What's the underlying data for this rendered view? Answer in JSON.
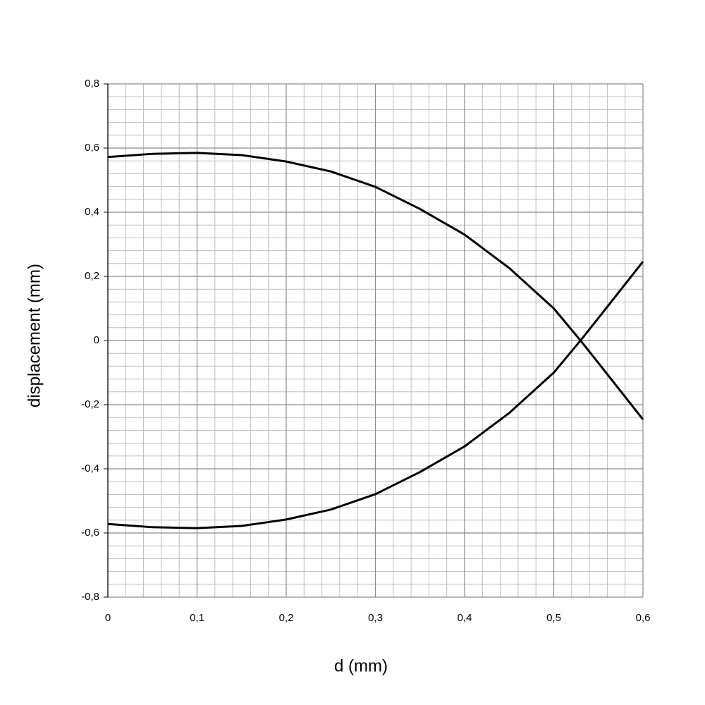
{
  "chart_data": {
    "type": "line",
    "x_label": "d (mm)",
    "y_label": "displacement (mm)",
    "x": [
      0,
      0.05,
      0.1,
      0.15,
      0.2,
      0.25,
      0.3,
      0.35,
      0.4,
      0.45,
      0.5,
      0.53,
      0.55,
      0.6
    ],
    "series": [
      {
        "color": "#000000",
        "values": [
          0.572,
          0.582,
          0.585,
          0.578,
          0.558,
          0.527,
          0.479,
          0.41,
          0.33,
          0.226,
          0.1,
          0.0,
          -0.07,
          -0.246
        ]
      },
      {
        "color": "#000000",
        "values": [
          -0.572,
          -0.582,
          -0.585,
          -0.578,
          -0.558,
          -0.527,
          -0.479,
          -0.41,
          -0.33,
          -0.226,
          -0.1,
          0.0,
          0.07,
          0.246
        ]
      }
    ],
    "xlim": [
      0,
      0.6
    ],
    "xticks": [
      0,
      {
        "value": 0.1,
        "label": "0,1"
      },
      {
        "value": 0.2,
        "label": "0,2"
      },
      {
        "value": 0.3,
        "label": "0,3"
      },
      {
        "value": 0.4,
        "label": "0,4"
      },
      {
        "value": 0.5,
        "label": "0,5"
      },
      {
        "value": 0.6,
        "label": "0,6"
      }
    ],
    "ylim": [
      -0.8,
      0.8
    ],
    "yticks": [
      {
        "value": -0.8,
        "label": "-0,8"
      },
      {
        "value": -0.6,
        "label": "-0,6"
      },
      {
        "value": -0.4,
        "label": "-0,4"
      },
      {
        "value": -0.2,
        "label": "-0,2"
      },
      0,
      {
        "value": 0.2,
        "label": "0,2"
      },
      {
        "value": 0.4,
        "label": "0,4"
      },
      {
        "value": 0.6,
        "label": "0,6"
      },
      {
        "value": 0.8,
        "label": "0,8"
      }
    ],
    "grid": true
  }
}
